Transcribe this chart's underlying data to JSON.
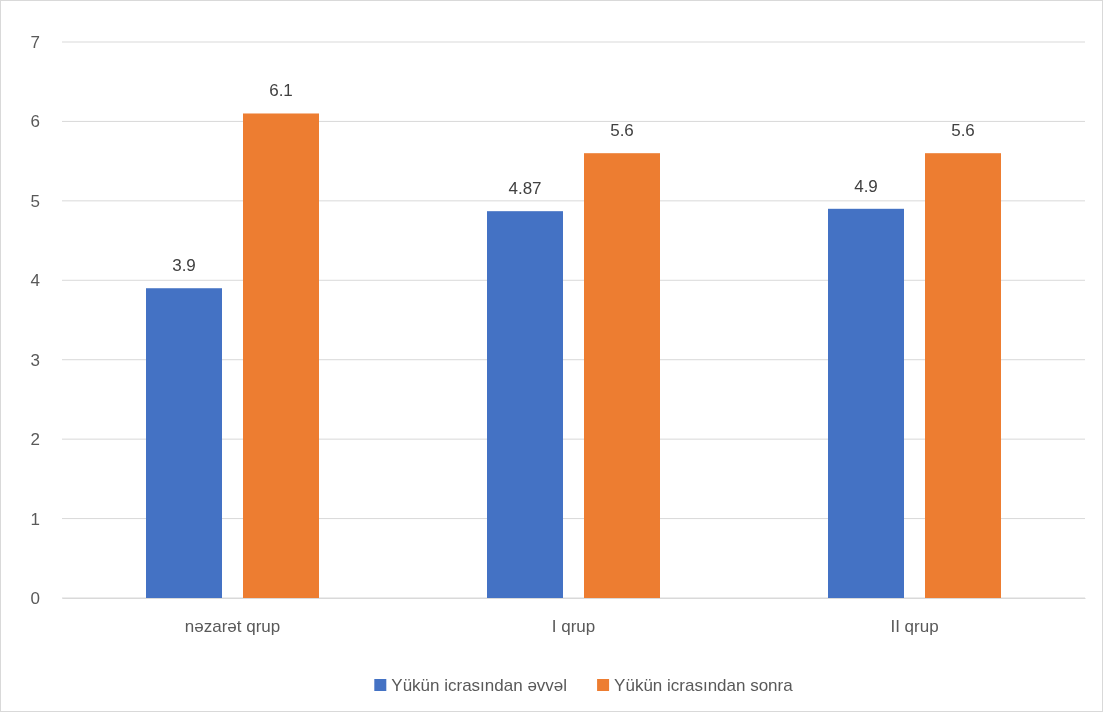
{
  "chart_data": {
    "type": "bar",
    "categories": [
      "nəzarət qrup",
      "I qrup",
      "II qrup"
    ],
    "series": [
      {
        "name": "Yükün icrasından əvvəl",
        "color": "#4472c4",
        "values": [
          3.9,
          4.87,
          4.9
        ]
      },
      {
        "name": "Yükün icrasından sonra",
        "color": "#ed7d31",
        "values": [
          6.1,
          5.6,
          5.6
        ]
      }
    ],
    "ylim": [
      0,
      7
    ],
    "yticks": [
      0,
      1,
      2,
      3,
      4,
      5,
      6,
      7
    ],
    "grid": "y",
    "legend": "bottom",
    "data_labels": true
  }
}
